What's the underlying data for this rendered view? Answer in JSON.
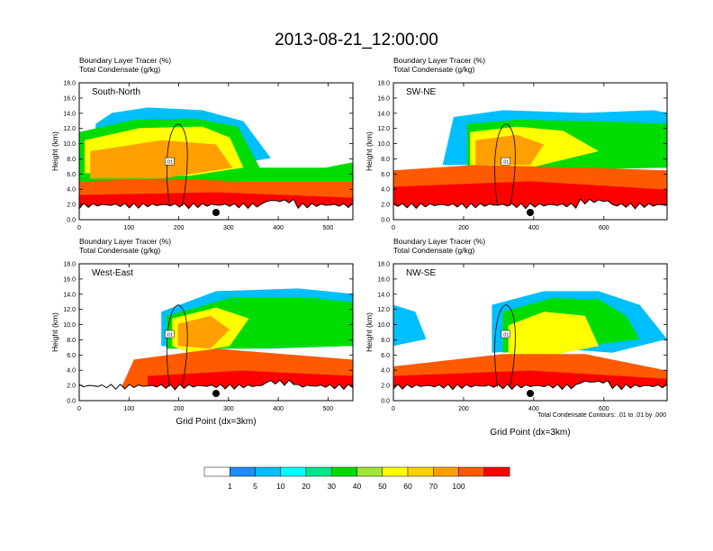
{
  "figure": {
    "title": "2013-08-21_12:00:00",
    "footnote": "Total Condensate Contours: .01 to .01 by .000"
  },
  "colorbar": {
    "labels": [
      "1",
      "5",
      "10",
      "20",
      "30",
      "40",
      "50",
      "60",
      "70",
      "100"
    ],
    "colors": [
      "#ffffff",
      "#1e8cff",
      "#00bfff",
      "#00ffff",
      "#00e68c",
      "#00dc00",
      "#a0e632",
      "#ffff00",
      "#ffd200",
      "#ffa000",
      "#ff5a00",
      "#ff0000"
    ]
  },
  "chart_data": [
    {
      "type": "heatmap",
      "panel_title": "South-North",
      "subtitle_left": "Boundary Layer Tracer   (%)",
      "subtitle_left2": "Total Condensate   (g/kg)",
      "ylabel": "Height (km)",
      "xlabel": "",
      "xlim": [
        0,
        550
      ],
      "ylim": [
        0,
        18
      ],
      "xticks": [
        "0",
        "100",
        "200",
        "300",
        "400",
        "500"
      ],
      "yticks": [
        "0.0",
        "2.0",
        "4.0",
        "6.0",
        "8.0",
        "10.0",
        "12.0",
        "14.0",
        "16.0",
        "18.0"
      ],
      "contour_label": ".01",
      "marker_x": 275
    },
    {
      "type": "heatmap",
      "panel_title": "SW-NE",
      "subtitle_left": "Boundary Layer Tracer   (%)",
      "subtitle_left2": "Total Condensate   (g/kg)",
      "ylabel": "Height (km)",
      "xlabel": "",
      "xlim": [
        0,
        780
      ],
      "ylim": [
        0,
        18
      ],
      "xticks": [
        "0",
        "200",
        "400",
        "600"
      ],
      "yticks": [
        "0.0",
        "2.0",
        "4.0",
        "6.0",
        "8.0",
        "10.0",
        "12.0",
        "14.0",
        "16.0",
        "18.0"
      ],
      "contour_label": ".01",
      "marker_x": 390
    },
    {
      "type": "heatmap",
      "panel_title": "West-East",
      "subtitle_left": "Boundary Layer Tracer   (%)",
      "subtitle_left2": "Total Condensate   (g/kg)",
      "ylabel": "Height (km)",
      "xlabel": "Grid Point (dx=3km)",
      "xlim": [
        0,
        550
      ],
      "ylim": [
        0,
        18
      ],
      "xticks": [
        "0",
        "100",
        "200",
        "300",
        "400",
        "500"
      ],
      "yticks": [
        "0.0",
        "2.0",
        "4.0",
        "6.0",
        "8.0",
        "10.0",
        "12.0",
        "14.0",
        "16.0",
        "18.0"
      ],
      "contour_label": ".01",
      "marker_x": 275
    },
    {
      "type": "heatmap",
      "panel_title": "NW-SE",
      "subtitle_left": "Boundary Layer Tracer   (%)",
      "subtitle_left2": "Total Condensate   (g/kg)",
      "ylabel": "Height (km)",
      "xlabel": "Grid Point (dx=3km)",
      "xlim": [
        0,
        780
      ],
      "ylim": [
        0,
        18
      ],
      "xticks": [
        "0",
        "200",
        "400",
        "600"
      ],
      "yticks": [
        "0.0",
        "2.0",
        "4.0",
        "6.0",
        "8.0",
        "10.0",
        "12.0",
        "14.0",
        "16.0",
        "18.0"
      ],
      "contour_label": ".01",
      "marker_x": 390
    }
  ]
}
